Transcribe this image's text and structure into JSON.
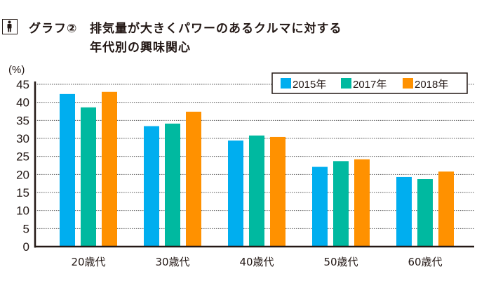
{
  "header": {
    "prefix": "グラフ②",
    "line1": "排気量が大きくパワーのあるクルマに対する",
    "line2": "年代別の興味関心",
    "icon": "person-icon"
  },
  "chart_data": {
    "type": "bar",
    "title": "グラフ② 排気量が大きくパワーのあるクルマに対する年代別の興味関心",
    "xlabel": "",
    "ylabel": "(%)",
    "categories": [
      "20歳代",
      "30歳代",
      "40歳代",
      "50歳代",
      "60歳代"
    ],
    "series": [
      {
        "name": "2015年",
        "color": "#00aeef",
        "values": [
          42.3,
          33.4,
          29.4,
          22.1,
          19.3
        ]
      },
      {
        "name": "2017年",
        "color": "#00b9a0",
        "values": [
          38.6,
          34.1,
          30.8,
          23.7,
          18.7
        ]
      },
      {
        "name": "2018年",
        "color": "#ff9100",
        "values": [
          42.9,
          37.4,
          30.4,
          24.2,
          20.8
        ]
      }
    ],
    "ylim": [
      0,
      45
    ],
    "yticks": [
      0,
      5,
      10,
      15,
      20,
      25,
      30,
      35,
      40,
      45
    ],
    "grid": true,
    "legend": "top-right"
  }
}
